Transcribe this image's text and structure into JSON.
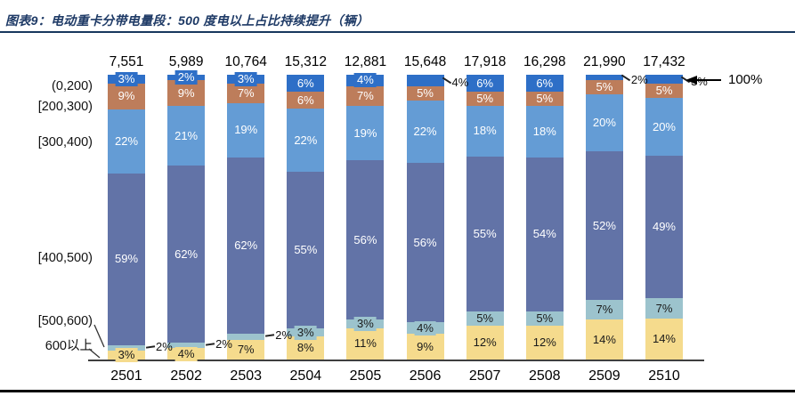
{
  "header": {
    "title": "图表9：电动重卡分带电量段：500 度电以上占比持续提升（辆）"
  },
  "chart_data": {
    "type": "bar",
    "subtype": "stacked-100-percent",
    "unit": "辆",
    "categories": [
      "2501",
      "2502",
      "2503",
      "2504",
      "2505",
      "2506",
      "2507",
      "2508",
      "2509",
      "2510"
    ],
    "totals": [
      "7,551",
      "5,989",
      "10,764",
      "15,312",
      "12,881",
      "15,648",
      "17,918",
      "16,298",
      "21,990",
      "17,432"
    ],
    "series_top_to_bottom": [
      {
        "name": "(0,200)",
        "color": "#2e6fc7",
        "label_color": "#ffffff",
        "values": [
          3,
          2,
          3,
          6,
          4,
          4,
          6,
          6,
          2,
          3
        ]
      },
      {
        "name": "[200,300)",
        "color": "#bd7d5b",
        "label_color": "#ffffff",
        "values": [
          9,
          9,
          7,
          6,
          7,
          5,
          5,
          5,
          5,
          5
        ]
      },
      {
        "name": "[300,400)",
        "color": "#649cd5",
        "label_color": "#ffffff",
        "values": [
          22,
          21,
          19,
          22,
          19,
          22,
          18,
          18,
          20,
          20
        ]
      },
      {
        "name": "[400,500)",
        "color": "#6273a7",
        "label_color": "#ffffff",
        "values": [
          59,
          62,
          62,
          55,
          56,
          56,
          55,
          54,
          52,
          49
        ]
      },
      {
        "name": "[500,600)",
        "color": "#9cc3cd",
        "label_color": "#1a1a1a",
        "values": [
          2,
          2,
          2,
          3,
          3,
          4,
          5,
          5,
          7,
          7
        ]
      },
      {
        "name": "600以上",
        "color": "#f5db8d",
        "label_color": "#1a1a1a",
        "values": [
          3,
          4,
          7,
          8,
          11,
          9,
          12,
          12,
          14,
          14
        ]
      }
    ],
    "external_labels": [
      {
        "bar": 0,
        "series": 4,
        "text": "2%",
        "leader": "dash"
      },
      {
        "bar": 1,
        "series": 4,
        "text": "2%",
        "leader": "dash"
      },
      {
        "bar": 2,
        "series": 4,
        "text": "2%",
        "leader": "dash"
      },
      {
        "bar": 5,
        "series": 0,
        "text": "4%",
        "leader": "diag"
      },
      {
        "bar": 8,
        "series": 0,
        "text": "2%",
        "leader": "diag"
      },
      {
        "bar": 9,
        "series": 0,
        "text": "3%",
        "leader": "diag"
      }
    ],
    "top_right_annotation": "100%",
    "ylim": [
      0,
      100
    ],
    "grid": false,
    "legend_position": "left-axis-rows"
  }
}
